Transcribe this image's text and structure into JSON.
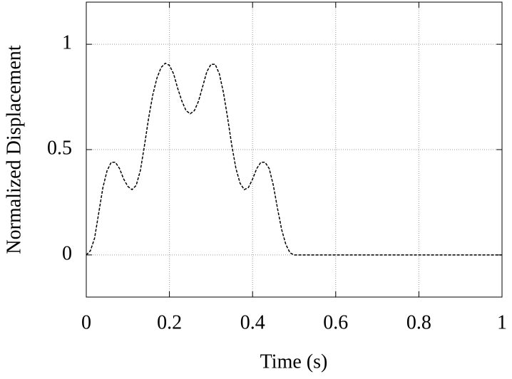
{
  "chart_data": {
    "type": "line",
    "x_label": "Time (s)",
    "y_label": "Normalized Displacement",
    "x": [
      0,
      0.01,
      0.02,
      0.03,
      0.04,
      0.05,
      0.06,
      0.07,
      0.08,
      0.09,
      0.1,
      0.11,
      0.12,
      0.13,
      0.14,
      0.15,
      0.16,
      0.17,
      0.18,
      0.19,
      0.2,
      0.21,
      0.22,
      0.23,
      0.24,
      0.25,
      0.26,
      0.27,
      0.28,
      0.29,
      0.3,
      0.31,
      0.32,
      0.33,
      0.34,
      0.35,
      0.36,
      0.37,
      0.38,
      0.39,
      0.4,
      0.41,
      0.42,
      0.43,
      0.44,
      0.45,
      0.46,
      0.47,
      0.48,
      0.49,
      0.5,
      1.0
    ],
    "values": [
      0,
      0.02,
      0.08,
      0.2,
      0.32,
      0.4,
      0.44,
      0.44,
      0.41,
      0.36,
      0.325,
      0.31,
      0.33,
      0.4,
      0.52,
      0.65,
      0.76,
      0.84,
      0.89,
      0.91,
      0.9,
      0.86,
      0.79,
      0.73,
      0.685,
      0.67,
      0.685,
      0.73,
      0.8,
      0.87,
      0.905,
      0.905,
      0.86,
      0.77,
      0.65,
      0.52,
      0.41,
      0.34,
      0.31,
      0.32,
      0.36,
      0.41,
      0.44,
      0.44,
      0.41,
      0.33,
      0.22,
      0.12,
      0.05,
      0.01,
      0,
      0
    ],
    "color": "#000000",
    "dashed": true,
    "xlim": [
      0,
      1
    ],
    "xticks": [
      0,
      0.2,
      0.4,
      0.6,
      0.8,
      1
    ],
    "ylim": [
      -0.2,
      1.2
    ],
    "yticks": [
      0,
      0.5,
      1
    ],
    "grid": true
  }
}
